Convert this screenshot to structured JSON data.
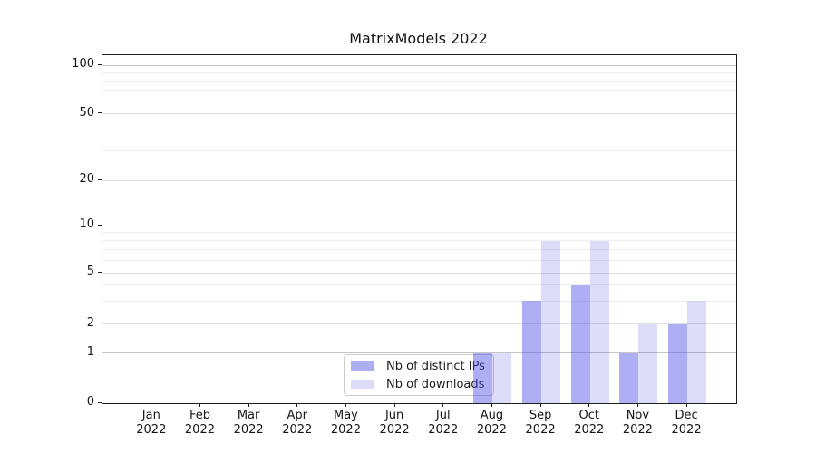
{
  "title": "MatrixModels 2022",
  "chart_data": {
    "type": "bar",
    "title": "MatrixModels 2022",
    "x_year": "2022",
    "x_months": [
      "Jan",
      "Feb",
      "Mar",
      "Apr",
      "May",
      "Jun",
      "Jul",
      "Aug",
      "Sep",
      "Oct",
      "Nov",
      "Dec"
    ],
    "series": [
      {
        "name": "Nb of distinct IPs",
        "color": "#a9a9f1",
        "fill": "rgba(75,75,230,0.45)",
        "values": [
          0,
          0,
          0,
          0,
          0,
          0,
          0,
          1,
          3,
          4,
          1,
          2
        ]
      },
      {
        "name": "Nb of downloads",
        "color": "#d8d8f8",
        "fill": "rgba(75,75,230,0.19)",
        "values": [
          0,
          0,
          0,
          0,
          0,
          0,
          0,
          1,
          8,
          8,
          2,
          3
        ]
      }
    ],
    "y_axis": {
      "scale": "symlog",
      "ticks": [
        0,
        1,
        2,
        5,
        10,
        20,
        50,
        100
      ],
      "minor_gridlines": [
        3,
        4,
        6,
        7,
        8,
        9,
        30,
        40,
        60,
        70,
        80,
        90
      ],
      "ylim": [
        0,
        100
      ]
    },
    "grid": true,
    "legend_position": "lower center"
  }
}
